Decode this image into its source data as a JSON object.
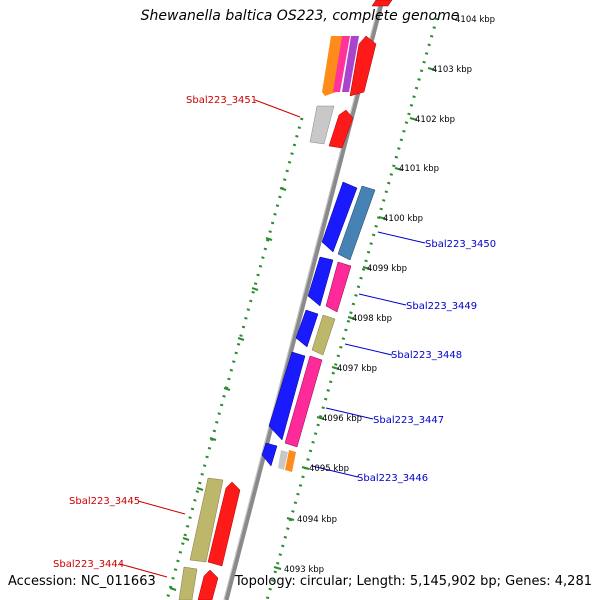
{
  "title": "Shewanella baltica OS223, complete genome",
  "accession": "Accession: NC_011663",
  "summary": "Topology: circular; Length: 5,145,902 bp; Genes: 4,281",
  "colors": {
    "backbone": "#808080",
    "tick_ring": "#2e8b2e",
    "forward_label": "#0000cc",
    "reverse_label": "#cc0000"
  },
  "position_ticks": [
    "4093 kbp",
    "4094 kbp",
    "4095 kbp",
    "4096 kbp",
    "4097 kbp",
    "4098 kbp",
    "4099 kbp",
    "4100 kbp",
    "4101 kbp",
    "4102 kbp",
    "4103 kbp",
    "4104 kbp"
  ],
  "gene_labels": {
    "Sbal223_3451": "Sbal223_3451",
    "Sbal223_3450": "Sbal223_3450",
    "Sbal223_3449": "Sbal223_3449",
    "Sbal223_3448": "Sbal223_3448",
    "Sbal223_3447": "Sbal223_3447",
    "Sbal223_3446": "Sbal223_3446",
    "Sbal223_3445": "Sbal223_3445",
    "Sbal223_3444": "Sbal223_3444"
  }
}
